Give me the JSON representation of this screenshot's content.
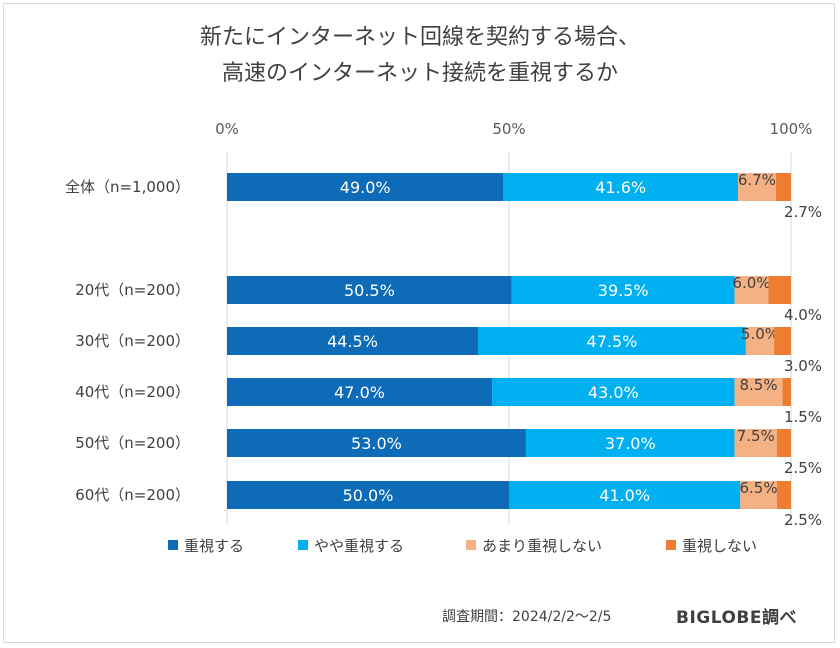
{
  "title_line1": "新たにインターネット回線を契約する場合、",
  "title_line2": "高速のインターネット接続を重視するか",
  "footer": {
    "period": "調査期間：2024/2/2〜2/5",
    "brand": "BIGLOBE調べ"
  },
  "chart_data": {
    "type": "bar",
    "orientation": "horizontal",
    "stacked": true,
    "percent": true,
    "xlim": [
      0,
      100
    ],
    "x_ticks": [
      "0%",
      "50%",
      "100%"
    ],
    "grid": true,
    "legend_position": "bottom",
    "categories": [
      "全体（n=1,000）",
      "20代（n=200）",
      "30代（n=200）",
      "40代（n=200）",
      "50代（n=200）",
      "60代（n=200）"
    ],
    "series": [
      {
        "name": "重視する",
        "color": "#0e6bb8",
        "values": [
          49.0,
          50.5,
          44.5,
          47.0,
          53.0,
          50.0
        ],
        "labels": [
          "49.0%",
          "50.5%",
          "44.5%",
          "47.0%",
          "53.0%",
          "50.0%"
        ]
      },
      {
        "name": "やや重視する",
        "color": "#00b0f0",
        "values": [
          41.6,
          39.5,
          47.5,
          43.0,
          37.0,
          41.0
        ],
        "labels": [
          "41.6%",
          "39.5%",
          "47.5%",
          "43.0%",
          "37.0%",
          "41.0%"
        ]
      },
      {
        "name": "あまり重視しない",
        "color": "#f4b183",
        "values": [
          6.7,
          6.0,
          5.0,
          8.5,
          7.5,
          6.5
        ],
        "labels": [
          "6.7%",
          "6.0%",
          "5.0%",
          "8.5%",
          "7.5%",
          "6.5%"
        ]
      },
      {
        "name": "重視しない",
        "color": "#ed7d31",
        "values": [
          2.7,
          4.0,
          3.0,
          1.5,
          2.5,
          2.5
        ],
        "labels": [
          "2.7%",
          "4.0%",
          "3.0%",
          "1.5%",
          "2.5%",
          "2.5%"
        ]
      }
    ]
  }
}
